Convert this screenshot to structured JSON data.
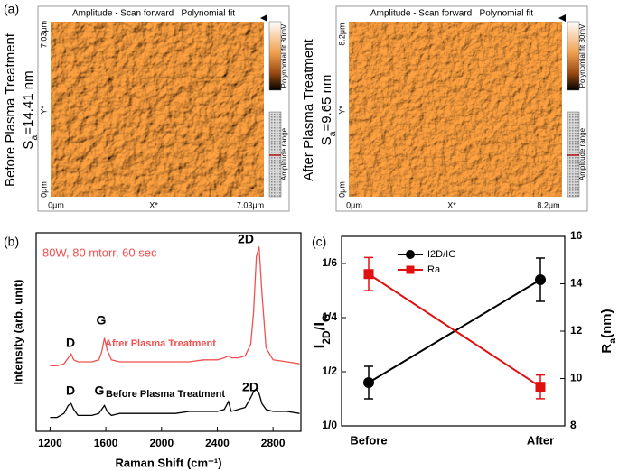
{
  "panel_labels": [
    "(a)",
    "(b)",
    "(c)"
  ],
  "afm": [
    {
      "title": "Amplitude - Scan forward   Polynomial fit",
      "colorbar_label": "Polynomial fit 80mV",
      "range_label": "Amplitude range",
      "x_ticks": [
        "0μm",
        "X*",
        "7.03μm"
      ],
      "y_ticks": [
        "7.03μm",
        "Y*",
        "0μm"
      ],
      "treatment": "Before Plasma Treatment",
      "roughness": [
        "S",
        "a",
        "=14.41 nm"
      ]
    },
    {
      "title": "Amplitude - Scan forward   Polynomial fit",
      "colorbar_label": "Polynomial fit 80mV",
      "range_label": "Amplitude range",
      "x_ticks": [
        "0μm",
        "X*",
        "8.2μm"
      ],
      "y_ticks": [
        "8.2μm",
        "Y*",
        "0μm"
      ],
      "treatment": "After Plasma Treatment",
      "roughness": [
        "S",
        "a",
        "=9.65 nm"
      ]
    }
  ],
  "chart_data": [
    {
      "type": "spectrum",
      "xlabel": "Raman Shift (cm⁻¹)",
      "ylabel": "Intensity (arb. unit)",
      "conditions": "80W, 80 mtorr, 60 sec",
      "peak_labels": [
        "D",
        "G",
        "2D",
        "D",
        "G",
        "2D"
      ],
      "x": [
        1200,
        1250,
        1300,
        1330,
        1350,
        1370,
        1400,
        1450,
        1500,
        1550,
        1570,
        1590,
        1610,
        1640,
        1700,
        1800,
        1900,
        2000,
        2100,
        2200,
        2300,
        2400,
        2450,
        2480,
        2500,
        2550,
        2600,
        2640,
        2660,
        2680,
        2700,
        2720,
        2750,
        2800,
        2900,
        2990
      ],
      "xlim": [
        1100,
        3000
      ],
      "xticks": [
        1200,
        1600,
        2000,
        2400,
        2800
      ],
      "ylim": [
        0,
        100
      ],
      "series": [
        {
          "name": "After Plasma Treatment",
          "color": "#f05050",
          "values": [
            33,
            33,
            34,
            37,
            39,
            36,
            35,
            35,
            35,
            36,
            40,
            47,
            41,
            36,
            35,
            35,
            35,
            35,
            35,
            35,
            36,
            36,
            37,
            38,
            37,
            37,
            38,
            44,
            60,
            88,
            93,
            70,
            42,
            36,
            35,
            34
          ]
        },
        {
          "name": "Before Plasma Treatment",
          "color": "#000000",
          "values": [
            7,
            7,
            9,
            13,
            14,
            11,
            8,
            8,
            8,
            9,
            11,
            13,
            10,
            8,
            9,
            9,
            9,
            9,
            9,
            10,
            10,
            10,
            11,
            15,
            10,
            11,
            12,
            17,
            20,
            21,
            19,
            14,
            11,
            10,
            10,
            9
          ]
        }
      ]
    },
    {
      "type": "errorline",
      "categories": [
        "Before",
        "After"
      ],
      "ylabel": [
        "I",
        "2D",
        "/I",
        "G"
      ],
      "y2label": [
        "R",
        "a",
        "(nm)"
      ],
      "ylim": [
        1.0,
        1.7
      ],
      "yticks": [
        {
          "value": 1.0,
          "label": "1/0"
        },
        {
          "value": 1.2,
          "label": "1/2"
        },
        {
          "value": 1.4,
          "label": "1/4"
        },
        {
          "value": 1.6,
          "label": "1/6"
        }
      ],
      "y2lim": [
        8,
        16
      ],
      "y2ticks": [
        8,
        10,
        12,
        14,
        16
      ],
      "series": [
        {
          "name": "I2D/IG",
          "color": "#000000",
          "marker": "circle",
          "values": [
            1.16,
            1.54
          ],
          "errors": [
            0.06,
            0.08
          ]
        },
        {
          "name": "Ra",
          "color": "#e01010",
          "marker": "square",
          "axis": "y2",
          "values": [
            14.41,
            9.65
          ],
          "errors": [
            0.7,
            0.5
          ]
        }
      ]
    }
  ]
}
